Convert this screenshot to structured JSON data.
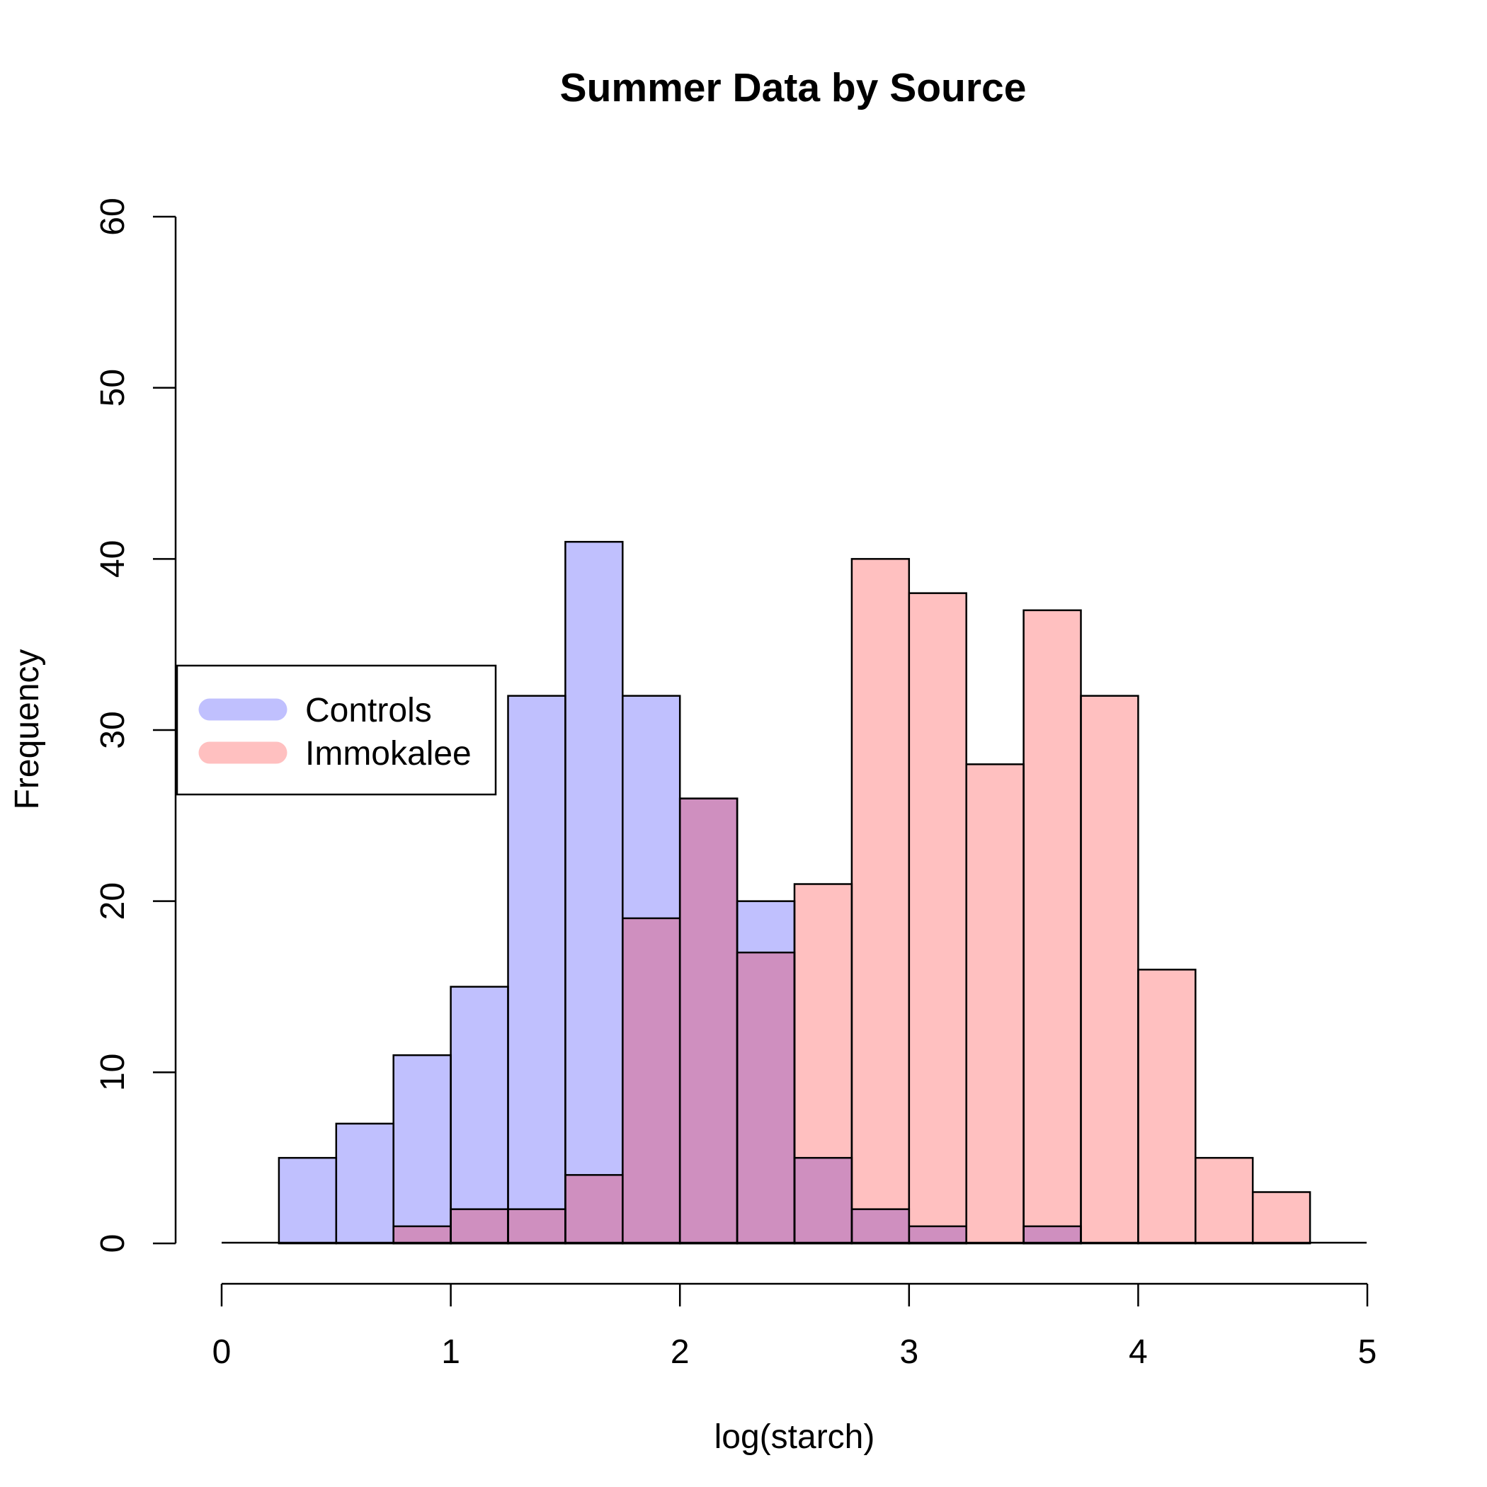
{
  "chart_data": {
    "type": "histogram",
    "title": "Summer Data by Source",
    "xlabel": "log(starch)",
    "ylabel": "Frequency",
    "xlim": [
      0,
      5
    ],
    "ylim": [
      0,
      60
    ],
    "x_ticks": [
      0,
      1,
      2,
      3,
      4,
      5
    ],
    "y_ticks": [
      0,
      10,
      20,
      30,
      40,
      50,
      60
    ],
    "grid": false,
    "legend_position": "left",
    "overlap_color": "#cf8fbf",
    "series": [
      {
        "name": "Controls",
        "color": "#c0c0fe",
        "bins": [
          {
            "x0": 0.25,
            "x1": 0.5,
            "count": 5
          },
          {
            "x0": 0.5,
            "x1": 0.75,
            "count": 7
          },
          {
            "x0": 0.75,
            "x1": 1.0,
            "count": 11
          },
          {
            "x0": 1.0,
            "x1": 1.25,
            "count": 15
          },
          {
            "x0": 1.25,
            "x1": 1.5,
            "count": 32
          },
          {
            "x0": 1.5,
            "x1": 1.75,
            "count": 41
          },
          {
            "x0": 1.75,
            "x1": 2.0,
            "count": 32
          },
          {
            "x0": 2.0,
            "x1": 2.25,
            "count": 26
          },
          {
            "x0": 2.25,
            "x1": 2.5,
            "count": 20
          },
          {
            "x0": 2.5,
            "x1": 2.75,
            "count": 5
          },
          {
            "x0": 2.75,
            "x1": 3.0,
            "count": 2
          },
          {
            "x0": 3.0,
            "x1": 3.25,
            "count": 1
          },
          {
            "x0": 3.25,
            "x1": 3.5,
            "count": 0
          },
          {
            "x0": 3.5,
            "x1": 3.75,
            "count": 1
          }
        ]
      },
      {
        "name": "Immokalee",
        "color": "#ffc0c0",
        "bins": [
          {
            "x0": 0.75,
            "x1": 1.0,
            "count": 1
          },
          {
            "x0": 1.0,
            "x1": 1.25,
            "count": 2
          },
          {
            "x0": 1.25,
            "x1": 1.5,
            "count": 2
          },
          {
            "x0": 1.5,
            "x1": 1.75,
            "count": 4
          },
          {
            "x0": 1.75,
            "x1": 2.0,
            "count": 19
          },
          {
            "x0": 2.0,
            "x1": 2.25,
            "count": 26
          },
          {
            "x0": 2.25,
            "x1": 2.5,
            "count": 17
          },
          {
            "x0": 2.5,
            "x1": 2.75,
            "count": 21
          },
          {
            "x0": 2.75,
            "x1": 3.0,
            "count": 40
          },
          {
            "x0": 3.0,
            "x1": 3.25,
            "count": 38
          },
          {
            "x0": 3.25,
            "x1": 3.5,
            "count": 28
          },
          {
            "x0": 3.5,
            "x1": 3.75,
            "count": 37
          },
          {
            "x0": 3.75,
            "x1": 4.0,
            "count": 32
          },
          {
            "x0": 4.0,
            "x1": 4.25,
            "count": 16
          },
          {
            "x0": 4.25,
            "x1": 4.5,
            "count": 5
          },
          {
            "x0": 4.5,
            "x1": 4.75,
            "count": 3
          }
        ]
      }
    ]
  }
}
